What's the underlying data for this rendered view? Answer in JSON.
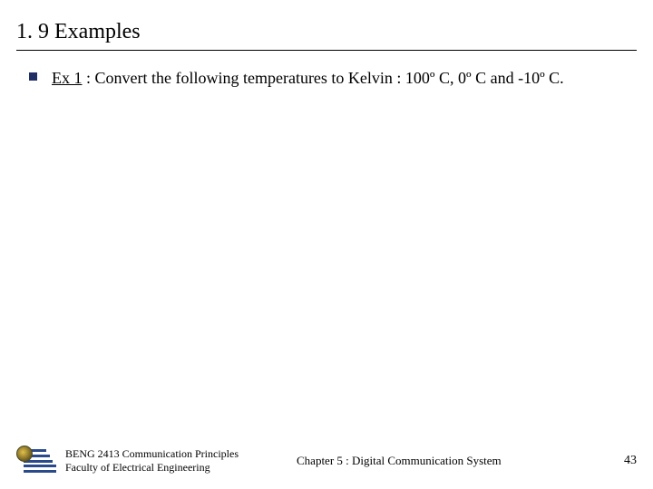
{
  "title": "1. 9 Examples",
  "bullet": {
    "label": "Ex 1",
    "text": " : Convert the following temperatures to Kelvin : 100º C, 0º C and -10º C."
  },
  "footer": {
    "course": "BENG 2413 Communication Principles",
    "dept": "Faculty of Electrical Engineering",
    "chapter": "Chapter 5 : Digital Communication System",
    "page": "43"
  },
  "colors": {
    "bullet_color": "#1f2f66",
    "rule_color": "#000000",
    "text_color": "#000000",
    "background": "#ffffff"
  }
}
